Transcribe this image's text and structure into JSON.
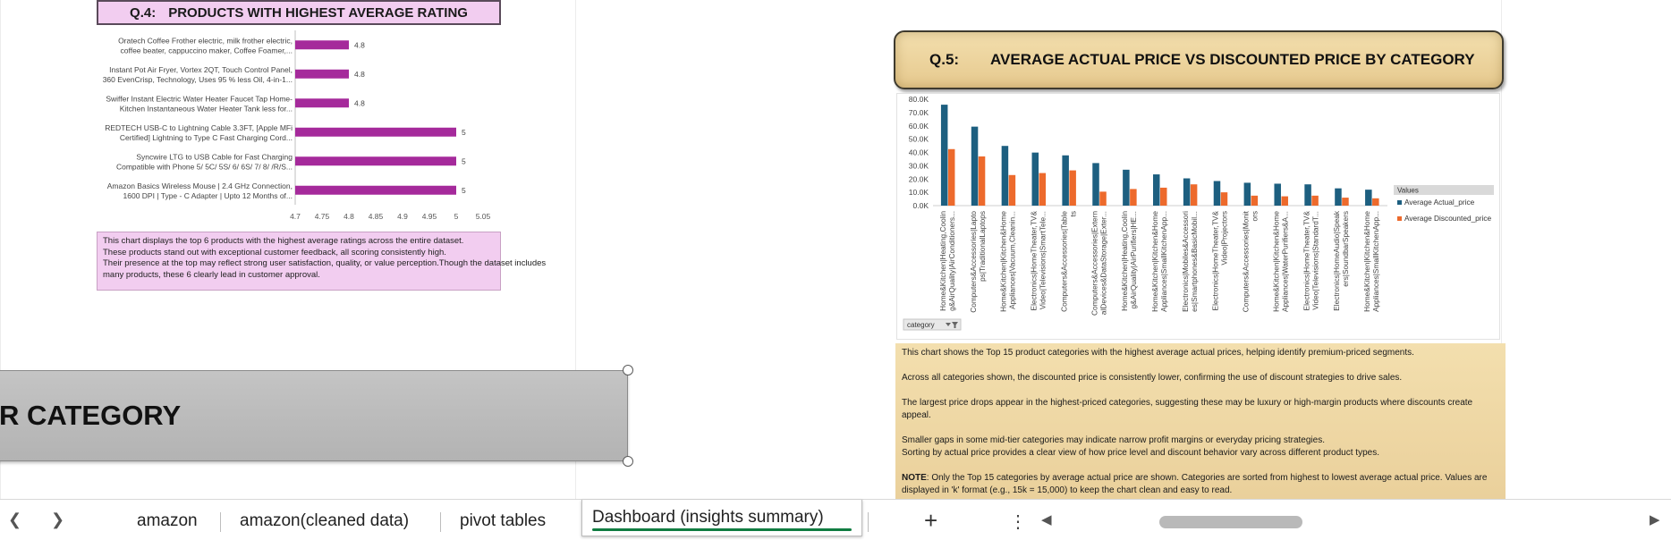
{
  "q4": {
    "header_num": "Q.4:",
    "header_title": "PRODUCTS WITH HIGHEST AVERAGE RATING",
    "note_lines": [
      "This chart displays the top 6 products with the highest average ratings across the entire dataset.",
      "These products stand out with exceptional customer feedback, all scoring consistently high.",
      "Their presence at the top may reflect strong user satisfaction, quality, or value perception.Though the dataset includes",
      "many products, these 6 clearly lead in customer approval."
    ]
  },
  "q5": {
    "header_num": "Q.5:",
    "header_title": "AVERAGE ACTUAL PRICE VS DISCOUNTED PRICE BY CATEGORY",
    "note_paragraphs": [
      "This chart shows the Top 15 product categories with the highest average actual prices, helping identify premium-priced segments.",
      "Across all categories shown, the discounted price is consistently lower, confirming the use of discount strategies to drive sales.",
      "The largest price drops appear in the highest-priced categories, suggesting these may be luxury or high-margin products where discounts create appeal.",
      "Smaller gaps in some mid-tier categories may indicate narrow profit margins or everyday pricing strategies.",
      "Sorting by actual price provides a clear view of how price level and discount behavior vary across different product types."
    ],
    "note_bold": "NOTE",
    "note_tail": ": Only the Top 15 categories by average actual price are shown. Categories are sorted from highest to lowest average actual price. Values are displayed in 'k' format (e.g., 15k = 15,000) to keep the chart clean and easy to read.",
    "filter_button_label": "category"
  },
  "shape": {
    "text": "R CATEGORY"
  },
  "tabs": {
    "items": [
      "amazon",
      "amazon(cleaned data)",
      "pivot tables"
    ],
    "active": "Dashboard (insights summary)",
    "add_label": "+",
    "more_label": "⋮"
  },
  "colors": {
    "q4_bar": "#a52a9b",
    "actual": "#1d5f80",
    "discounted": "#ed6a2c",
    "q4_bg": "#f2cdf0",
    "q5_bg": "#f3dfae",
    "tab_underline": "#107c41"
  },
  "chart_data": [
    {
      "type": "bar",
      "orientation": "horizontal",
      "categories": [
        [
          "Oratech Coffee Frother electric, milk frother electric,",
          "coffee beater, cappuccino maker, Coffee Foamer,..."
        ],
        [
          "Instant Pot Air Fryer, Vortex 2QT, Touch Control Panel,",
          "360 EvenCrisp, Technology, Uses 95 % less Oil, 4-in-1..."
        ],
        [
          "Swiffer Instant Electric Water Heater Faucet Tap Home-",
          "Kitchen Instantaneous Water Heater Tank less for..."
        ],
        [
          "REDTECH USB-C to Lightning Cable 3.3FT, [Apple MFi",
          "Certified] Lightning to Type C Fast Charging Cord..."
        ],
        [
          "Syncwire LTG to USB Cable for Fast Charging",
          "Compatible with Phone 5/ 5C/ 5S/ 6/ 6S/ 7/ 8/ /R/S..."
        ],
        [
          "Amazon Basics Wireless Mouse | 2.4 GHz Connection,",
          "1600 DPI | Type - C Adapter | Upto 12 Months of..."
        ]
      ],
      "values": [
        4.8,
        4.8,
        4.8,
        5,
        5,
        5
      ],
      "value_labels": [
        "4.8",
        "4.8",
        "4.8",
        "5",
        "5",
        "5"
      ],
      "xlim": [
        4.7,
        5.05
      ],
      "xticks": [
        "4.7",
        "4.75",
        "4.8",
        "4.85",
        "4.9",
        "4.95",
        "5",
        "5.05"
      ]
    },
    {
      "type": "bar",
      "categories": [
        [
          "Home&Kitchen|Heating,Coolin",
          "g&AirQuality|AirConditioners..."
        ],
        [
          "Computers&Accessories|Lapto",
          "ps|TraditionalLaptops"
        ],
        [
          "Home&Kitchen|Kitchen&Home",
          "Appliances|Vacuum,Cleanin..."
        ],
        [
          "Electronics|HomeTheater,TV&",
          "Video|Televisions|SmartTele..."
        ],
        [
          "Computers&Accessories|Table",
          "ts"
        ],
        [
          "Computers&Accessories|Extern",
          "alDevices&DataStorage|Exter..."
        ],
        [
          "Home&Kitchen|Heating,Coolin",
          "g&AirQuality|AirPurifiers|HE..."
        ],
        [
          "Home&Kitchen|Kitchen&Home",
          "Appliances|SmallKitchenApp..."
        ],
        [
          "Electronics|Mobiles&Accessori",
          "es|Smartphones&BasicMobil..."
        ],
        [
          "Electronics|HomeTheater,TV&",
          "Video|Projectors"
        ],
        [
          "Computers&Accessories|Monit",
          "ors"
        ],
        [
          "Home&Kitchen|Kitchen&Home",
          "Appliances|WaterPurifiers&A..."
        ],
        [
          "Electronics|HomeTheater,TV&",
          "Video|Televisions|StandardT..."
        ],
        [
          "Electronics|HomeAudio|Speak",
          "ers|SoundbarSpeakers"
        ],
        [
          "Home&Kitchen|Kitchen&Home",
          "Appliances|SmallKitchenApp..."
        ]
      ],
      "series": [
        {
          "name": "Average Actual_price",
          "values": [
            75900,
            59400,
            44900,
            39900,
            37800,
            32000,
            27000,
            23500,
            20500,
            18500,
            17200,
            16500,
            16000,
            13000,
            12000
          ]
        },
        {
          "name": "Average Discounted_price",
          "values": [
            42500,
            37000,
            23000,
            24500,
            26500,
            10500,
            12500,
            13500,
            16000,
            10000,
            7500,
            7000,
            7500,
            6000,
            5500
          ]
        }
      ],
      "ylim": [
        0,
        80000
      ],
      "yticks": [
        "0.0K",
        "10.0K",
        "20.0K",
        "30.0K",
        "40.0K",
        "50.0K",
        "60.0K",
        "70.0K",
        "80.0K"
      ],
      "legend_title": "Values",
      "legend_position": "right"
    }
  ]
}
